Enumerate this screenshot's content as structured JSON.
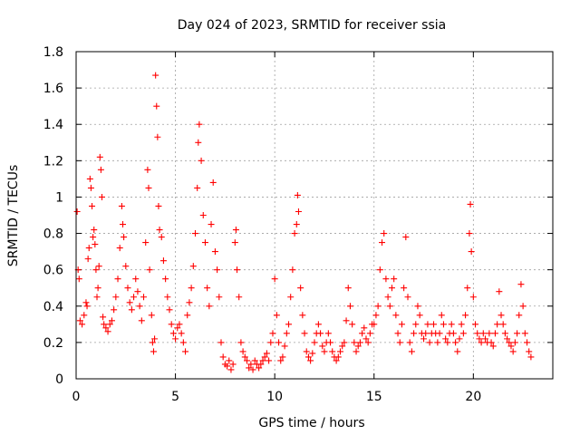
{
  "chart_data": {
    "type": "scatter",
    "title": "Day 024 of 2023, SRMTID for receiver ssia",
    "xlabel": "GPS time / hours",
    "ylabel": "SRMTID / TECUs",
    "xlim": [
      0,
      24
    ],
    "ylim": [
      0,
      1.8
    ],
    "xticks": [
      0,
      5,
      10,
      15,
      20
    ],
    "xtick_labels": [
      "0",
      "5",
      "10",
      "15",
      "20"
    ],
    "yticks": [
      0,
      0.2,
      0.4,
      0.6,
      0.8,
      1,
      1.2,
      1.4,
      1.6,
      1.8
    ],
    "ytick_labels": [
      "0",
      "0.2",
      "0.4",
      "0.6",
      "0.8",
      "1",
      "1.2",
      "1.4",
      "1.6",
      "1.8"
    ],
    "grid": true,
    "marker": "plus",
    "marker_color": "#ff0000",
    "series": [
      {
        "name": "SRMTID",
        "points": [
          [
            0.05,
            0.92
          ],
          [
            0.1,
            0.6
          ],
          [
            0.15,
            0.55
          ],
          [
            0.2,
            0.32
          ],
          [
            0.3,
            0.3
          ],
          [
            0.4,
            0.35
          ],
          [
            0.5,
            0.42
          ],
          [
            0.55,
            0.4
          ],
          [
            0.6,
            0.66
          ],
          [
            0.65,
            0.72
          ],
          [
            0.7,
            1.1
          ],
          [
            0.75,
            1.05
          ],
          [
            0.8,
            0.95
          ],
          [
            0.85,
            0.78
          ],
          [
            0.9,
            0.82
          ],
          [
            0.95,
            0.74
          ],
          [
            1.0,
            0.6
          ],
          [
            1.05,
            0.45
          ],
          [
            1.1,
            0.5
          ],
          [
            1.15,
            0.62
          ],
          [
            1.2,
            1.22
          ],
          [
            1.25,
            1.15
          ],
          [
            1.3,
            1.0
          ],
          [
            1.35,
            0.34
          ],
          [
            1.4,
            0.3
          ],
          [
            1.5,
            0.28
          ],
          [
            1.6,
            0.26
          ],
          [
            1.7,
            0.3
          ],
          [
            1.8,
            0.32
          ],
          [
            1.9,
            0.38
          ],
          [
            2.0,
            0.45
          ],
          [
            2.1,
            0.55
          ],
          [
            2.2,
            0.72
          ],
          [
            2.3,
            0.95
          ],
          [
            2.35,
            0.85
          ],
          [
            2.4,
            0.78
          ],
          [
            2.5,
            0.62
          ],
          [
            2.6,
            0.5
          ],
          [
            2.7,
            0.42
          ],
          [
            2.8,
            0.38
          ],
          [
            2.9,
            0.45
          ],
          [
            3.0,
            0.55
          ],
          [
            3.1,
            0.48
          ],
          [
            3.2,
            0.4
          ],
          [
            3.3,
            0.32
          ],
          [
            3.4,
            0.45
          ],
          [
            3.5,
            0.75
          ],
          [
            3.6,
            1.15
          ],
          [
            3.65,
            1.05
          ],
          [
            3.7,
            0.6
          ],
          [
            3.8,
            0.35
          ],
          [
            3.85,
            0.2
          ],
          [
            3.9,
            0.15
          ],
          [
            3.95,
            0.22
          ],
          [
            4.0,
            1.67
          ],
          [
            4.05,
            1.5
          ],
          [
            4.1,
            1.33
          ],
          [
            4.15,
            0.95
          ],
          [
            4.2,
            0.82
          ],
          [
            4.3,
            0.78
          ],
          [
            4.4,
            0.65
          ],
          [
            4.5,
            0.55
          ],
          [
            4.6,
            0.45
          ],
          [
            4.7,
            0.38
          ],
          [
            4.8,
            0.3
          ],
          [
            4.9,
            0.25
          ],
          [
            5.0,
            0.22
          ],
          [
            5.1,
            0.28
          ],
          [
            5.2,
            0.3
          ],
          [
            5.3,
            0.25
          ],
          [
            5.4,
            0.2
          ],
          [
            5.5,
            0.15
          ],
          [
            5.6,
            0.35
          ],
          [
            5.7,
            0.42
          ],
          [
            5.8,
            0.5
          ],
          [
            5.9,
            0.62
          ],
          [
            6.0,
            0.8
          ],
          [
            6.1,
            1.05
          ],
          [
            6.15,
            1.3
          ],
          [
            6.2,
            1.4
          ],
          [
            6.3,
            1.2
          ],
          [
            6.4,
            0.9
          ],
          [
            6.5,
            0.75
          ],
          [
            6.6,
            0.5
          ],
          [
            6.7,
            0.4
          ],
          [
            6.8,
            0.85
          ],
          [
            6.9,
            1.08
          ],
          [
            7.0,
            0.7
          ],
          [
            7.1,
            0.6
          ],
          [
            7.2,
            0.45
          ],
          [
            7.3,
            0.2
          ],
          [
            7.4,
            0.12
          ],
          [
            7.5,
            0.08
          ],
          [
            7.6,
            0.07
          ],
          [
            7.7,
            0.1
          ],
          [
            7.8,
            0.05
          ],
          [
            7.9,
            0.08
          ],
          [
            8.0,
            0.75
          ],
          [
            8.05,
            0.82
          ],
          [
            8.1,
            0.6
          ],
          [
            8.2,
            0.45
          ],
          [
            8.3,
            0.2
          ],
          [
            8.4,
            0.15
          ],
          [
            8.5,
            0.12
          ],
          [
            8.6,
            0.1
          ],
          [
            8.7,
            0.06
          ],
          [
            8.8,
            0.08
          ],
          [
            8.9,
            0.05
          ],
          [
            9.0,
            0.1
          ],
          [
            9.1,
            0.08
          ],
          [
            9.2,
            0.06
          ],
          [
            9.3,
            0.08
          ],
          [
            9.4,
            0.1
          ],
          [
            9.5,
            0.12
          ],
          [
            9.6,
            0.14
          ],
          [
            9.7,
            0.1
          ],
          [
            9.8,
            0.2
          ],
          [
            9.9,
            0.25
          ],
          [
            10.0,
            0.55
          ],
          [
            10.1,
            0.35
          ],
          [
            10.2,
            0.2
          ],
          [
            10.3,
            0.1
          ],
          [
            10.4,
            0.12
          ],
          [
            10.5,
            0.18
          ],
          [
            10.6,
            0.25
          ],
          [
            10.7,
            0.3
          ],
          [
            10.8,
            0.45
          ],
          [
            10.9,
            0.6
          ],
          [
            11.0,
            0.8
          ],
          [
            11.1,
            0.85
          ],
          [
            11.15,
            1.01
          ],
          [
            11.2,
            0.92
          ],
          [
            11.3,
            0.5
          ],
          [
            11.4,
            0.35
          ],
          [
            11.5,
            0.25
          ],
          [
            11.6,
            0.15
          ],
          [
            11.7,
            0.12
          ],
          [
            11.8,
            0.1
          ],
          [
            11.9,
            0.14
          ],
          [
            12.0,
            0.2
          ],
          [
            12.1,
            0.25
          ],
          [
            12.2,
            0.3
          ],
          [
            12.3,
            0.25
          ],
          [
            12.4,
            0.18
          ],
          [
            12.5,
            0.15
          ],
          [
            12.6,
            0.2
          ],
          [
            12.7,
            0.25
          ],
          [
            12.8,
            0.2
          ],
          [
            12.9,
            0.15
          ],
          [
            13.0,
            0.12
          ],
          [
            13.1,
            0.1
          ],
          [
            13.2,
            0.12
          ],
          [
            13.3,
            0.15
          ],
          [
            13.4,
            0.18
          ],
          [
            13.5,
            0.2
          ],
          [
            13.6,
            0.32
          ],
          [
            13.7,
            0.5
          ],
          [
            13.8,
            0.4
          ],
          [
            13.9,
            0.3
          ],
          [
            14.0,
            0.2
          ],
          [
            14.1,
            0.15
          ],
          [
            14.2,
            0.18
          ],
          [
            14.3,
            0.2
          ],
          [
            14.4,
            0.25
          ],
          [
            14.5,
            0.28
          ],
          [
            14.6,
            0.22
          ],
          [
            14.7,
            0.2
          ],
          [
            14.8,
            0.25
          ],
          [
            14.9,
            0.3
          ],
          [
            15.0,
            0.3
          ],
          [
            15.1,
            0.35
          ],
          [
            15.2,
            0.4
          ],
          [
            15.3,
            0.6
          ],
          [
            15.4,
            0.75
          ],
          [
            15.5,
            0.8
          ],
          [
            15.6,
            0.55
          ],
          [
            15.7,
            0.45
          ],
          [
            15.8,
            0.4
          ],
          [
            15.9,
            0.5
          ],
          [
            16.0,
            0.55
          ],
          [
            16.1,
            0.35
          ],
          [
            16.2,
            0.25
          ],
          [
            16.3,
            0.2
          ],
          [
            16.4,
            0.3
          ],
          [
            16.5,
            0.5
          ],
          [
            16.6,
            0.78
          ],
          [
            16.7,
            0.45
          ],
          [
            16.8,
            0.2
          ],
          [
            16.9,
            0.15
          ],
          [
            17.0,
            0.25
          ],
          [
            17.1,
            0.3
          ],
          [
            17.2,
            0.4
          ],
          [
            17.3,
            0.35
          ],
          [
            17.4,
            0.25
          ],
          [
            17.5,
            0.22
          ],
          [
            17.6,
            0.25
          ],
          [
            17.7,
            0.3
          ],
          [
            17.8,
            0.2
          ],
          [
            17.9,
            0.25
          ],
          [
            18.0,
            0.3
          ],
          [
            18.1,
            0.25
          ],
          [
            18.2,
            0.2
          ],
          [
            18.3,
            0.25
          ],
          [
            18.4,
            0.35
          ],
          [
            18.5,
            0.3
          ],
          [
            18.6,
            0.22
          ],
          [
            18.7,
            0.2
          ],
          [
            18.8,
            0.25
          ],
          [
            18.9,
            0.3
          ],
          [
            19.0,
            0.25
          ],
          [
            19.1,
            0.2
          ],
          [
            19.2,
            0.15
          ],
          [
            19.3,
            0.22
          ],
          [
            19.4,
            0.3
          ],
          [
            19.5,
            0.25
          ],
          [
            19.6,
            0.35
          ],
          [
            19.7,
            0.5
          ],
          [
            19.8,
            0.8
          ],
          [
            19.85,
            0.96
          ],
          [
            19.9,
            0.7
          ],
          [
            20.0,
            0.45
          ],
          [
            20.1,
            0.3
          ],
          [
            20.2,
            0.25
          ],
          [
            20.3,
            0.22
          ],
          [
            20.4,
            0.2
          ],
          [
            20.5,
            0.25
          ],
          [
            20.6,
            0.22
          ],
          [
            20.7,
            0.2
          ],
          [
            20.8,
            0.25
          ],
          [
            20.9,
            0.2
          ],
          [
            21.0,
            0.18
          ],
          [
            21.1,
            0.25
          ],
          [
            21.2,
            0.3
          ],
          [
            21.3,
            0.48
          ],
          [
            21.4,
            0.35
          ],
          [
            21.5,
            0.3
          ],
          [
            21.6,
            0.25
          ],
          [
            21.7,
            0.22
          ],
          [
            21.8,
            0.2
          ],
          [
            21.9,
            0.18
          ],
          [
            22.0,
            0.15
          ],
          [
            22.1,
            0.2
          ],
          [
            22.2,
            0.25
          ],
          [
            22.3,
            0.35
          ],
          [
            22.4,
            0.52
          ],
          [
            22.5,
            0.4
          ],
          [
            22.6,
            0.25
          ],
          [
            22.7,
            0.2
          ],
          [
            22.8,
            0.15
          ],
          [
            22.9,
            0.12
          ]
        ]
      }
    ]
  }
}
